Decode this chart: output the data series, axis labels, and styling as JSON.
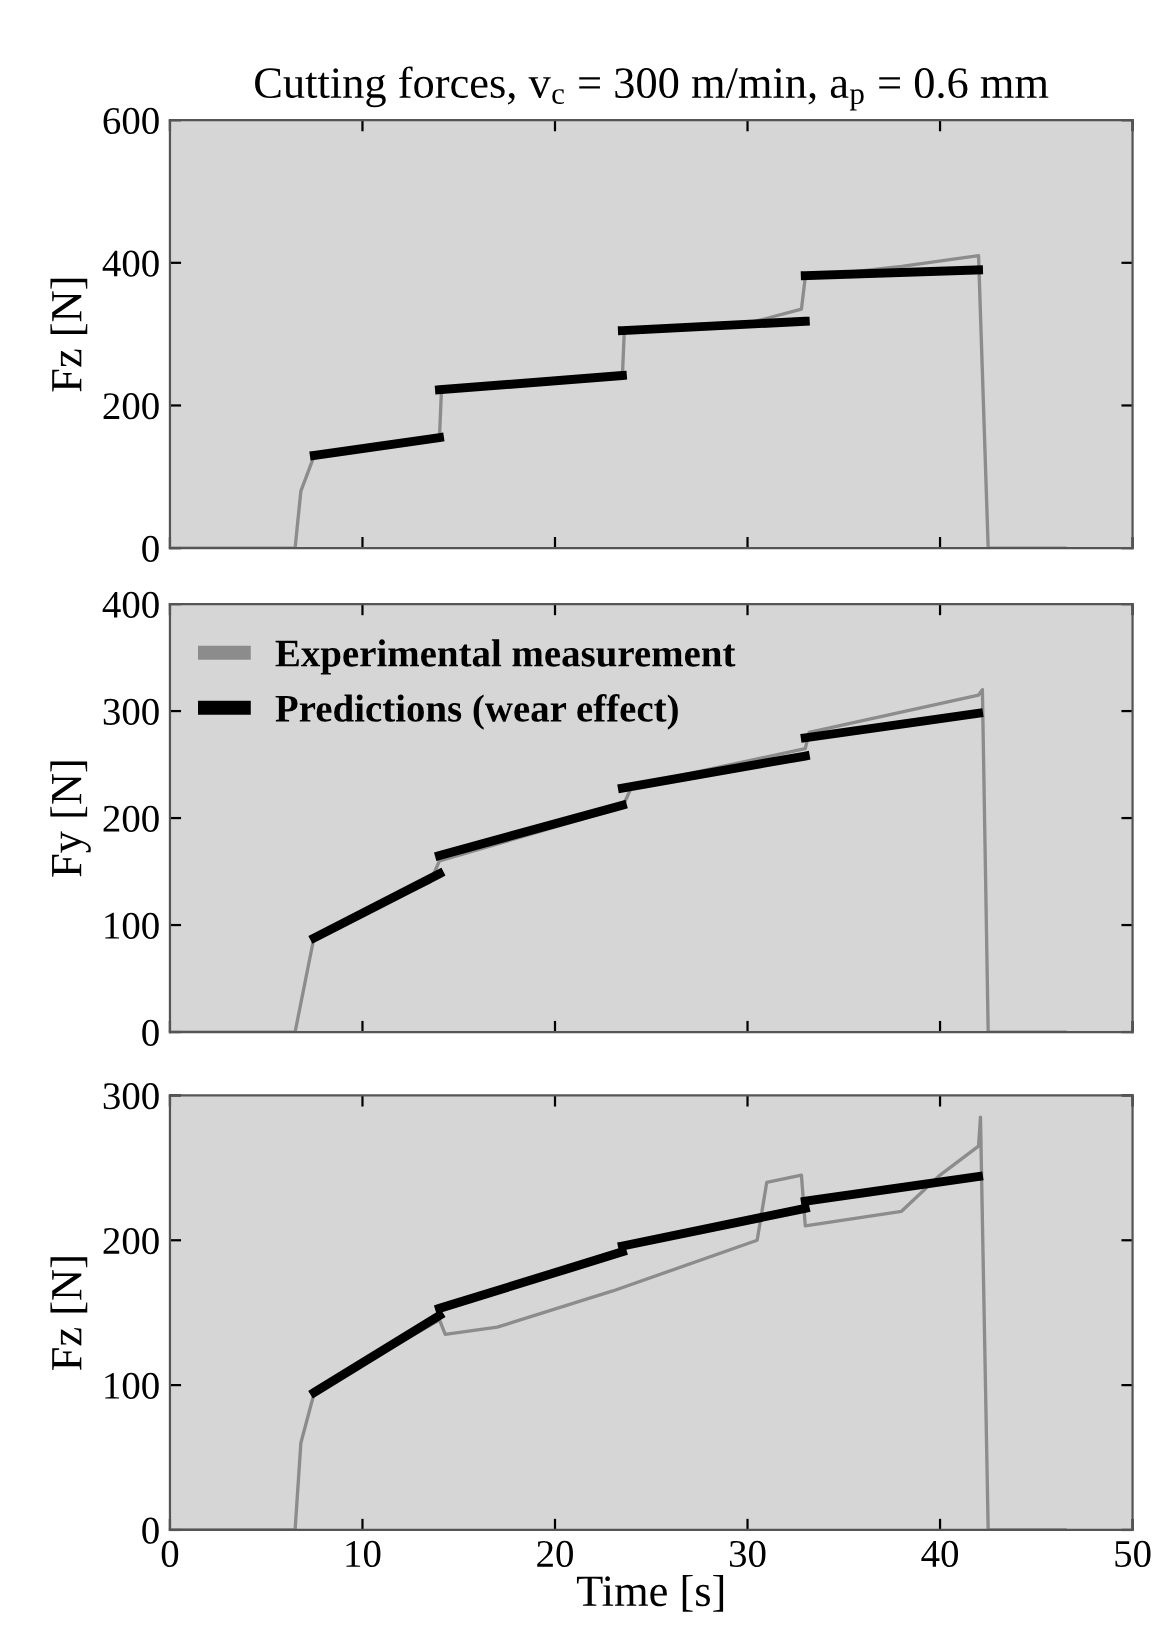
{
  "chart_data": [
    {
      "type": "line",
      "title": "Cutting forces, v$_{c}$ = 300 m/min, a$_{p}$ = 0.6 mm",
      "ylabel": "Fz [N]",
      "xlim": [
        0,
        50
      ],
      "xticks": [
        0,
        10,
        20,
        30,
        40,
        50
      ],
      "ylim": [
        0,
        600
      ],
      "yticks": [
        0,
        200,
        400,
        600
      ],
      "tick_labels": "y",
      "grid": false,
      "legend": false,
      "series": [
        {
          "color": "#8c8c8c",
          "x": [
            0,
            6.5,
            6.8,
            7.5,
            14,
            14.1,
            23.5,
            23.6,
            30,
            32.8,
            33,
            38,
            42,
            42.5,
            46.5
          ],
          "values": [
            0,
            0,
            80,
            130,
            155,
            220,
            240,
            305,
            315,
            335,
            380,
            395,
            410,
            0,
            0
          ]
        },
        {
          "color": "#000000",
          "x": [
            7.5,
            14,
            null,
            14,
            23.5,
            null,
            23.5,
            33,
            null,
            33,
            42
          ],
          "values": [
            130,
            155,
            null,
            222,
            242,
            null,
            305,
            318,
            null,
            382,
            390
          ]
        }
      ]
    },
    {
      "type": "line",
      "ylabel": "Fy [N]",
      "xlim": [
        0,
        50
      ],
      "xticks": [
        0,
        10,
        20,
        30,
        40,
        50
      ],
      "ylim": [
        0,
        400
      ],
      "yticks": [
        0,
        100,
        200,
        300,
        400
      ],
      "tick_labels": "y",
      "grid": false,
      "legend": "top left",
      "series": [
        {
          "name": "Experimental measurement",
          "color": "#8c8c8c",
          "x": [
            0,
            6.5,
            7.5,
            13.5,
            14,
            23.5,
            24,
            33,
            33.2,
            42,
            42.2,
            42.5,
            46.5
          ],
          "values": [
            0,
            0,
            90,
            140,
            160,
            210,
            230,
            265,
            280,
            315,
            320,
            0,
            0
          ]
        },
        {
          "name": "Predictions (wear effect)",
          "color": "#000000",
          "x": [
            7.5,
            14,
            null,
            14,
            23.5,
            null,
            23.5,
            33,
            null,
            33,
            42
          ],
          "values": [
            88,
            148,
            null,
            165,
            212,
            null,
            228,
            258,
            null,
            275,
            298
          ]
        }
      ]
    },
    {
      "type": "line",
      "ylabel": "Fz [N]",
      "xlabel": "Time [s]",
      "xlim": [
        0,
        50
      ],
      "xticks": [
        0,
        10,
        20,
        30,
        40,
        50
      ],
      "ylim": [
        0,
        300
      ],
      "yticks": [
        0,
        100,
        200,
        300
      ],
      "grid": false,
      "legend": false,
      "series": [
        {
          "color": "#8c8c8c",
          "x": [
            0,
            6.5,
            6.8,
            7.5,
            14,
            14.3,
            17,
            23,
            30.5,
            31,
            32.8,
            33,
            38,
            40,
            42,
            42.1,
            42.5,
            46.5
          ],
          "values": [
            0,
            0,
            60,
            95,
            145,
            135,
            140,
            165,
            200,
            240,
            245,
            210,
            220,
            245,
            265,
            285,
            0,
            0
          ]
        },
        {
          "color": "#000000",
          "x": [
            7.5,
            14,
            null,
            14,
            23.5,
            null,
            23.5,
            33,
            null,
            33,
            42
          ],
          "values": [
            95,
            148,
            null,
            153,
            192,
            null,
            196,
            222,
            null,
            227,
            244
          ]
        }
      ]
    }
  ]
}
